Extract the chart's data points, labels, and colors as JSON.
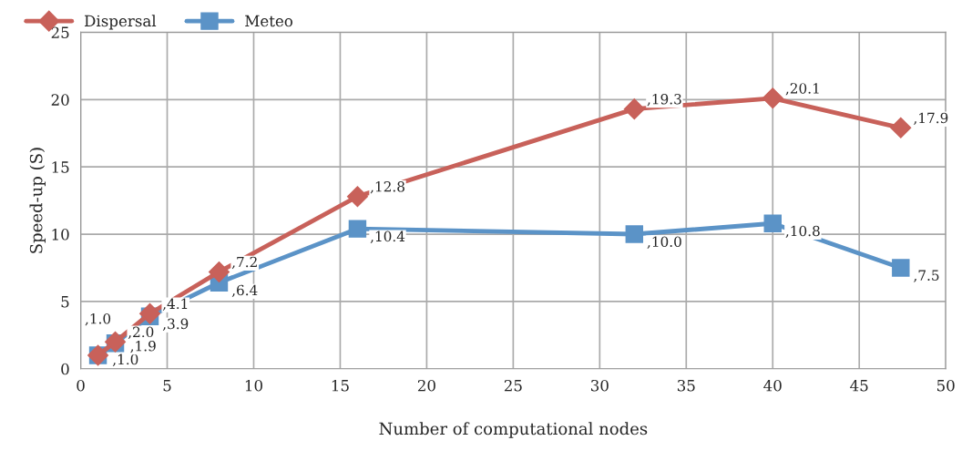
{
  "chart_data": {
    "type": "line",
    "xlabel": "Number of computational nodes",
    "ylabel": "Speed-up (S)",
    "xlim": [
      0,
      50
    ],
    "xticks": [
      0,
      5,
      10,
      15,
      20,
      25,
      30,
      35,
      40,
      45,
      50
    ],
    "ylim": [
      0,
      25
    ],
    "yticks": [
      0,
      5,
      10,
      15,
      20,
      25
    ],
    "grid": true,
    "legend": "top left",
    "series": [
      {
        "name": "Dispersal",
        "color": "#c8615a",
        "marker": "diamond",
        "x": [
          1,
          2,
          4,
          8,
          16,
          32,
          40,
          47.4
        ],
        "values": [
          1.0,
          2.0,
          4.1,
          7.2,
          12.8,
          19.3,
          20.1,
          17.9
        ],
        "value_labels": [
          ",1.0",
          ",2.0",
          ",4.1",
          ",7.2",
          ",12.8",
          ",19.3",
          ",20.1",
          ",17.9"
        ]
      },
      {
        "name": "Meteo",
        "color": "#5b93c7",
        "marker": "square",
        "x": [
          1,
          2,
          4,
          8,
          16,
          32,
          40,
          47.4
        ],
        "values": [
          1.0,
          1.9,
          3.9,
          6.4,
          10.4,
          10.0,
          10.8,
          7.5
        ],
        "value_labels": [
          ",1.0",
          ",1.9",
          ",3.9",
          ",6.4",
          ",10.4",
          ",10.0",
          ",10.8",
          ",7.5"
        ]
      }
    ]
  }
}
